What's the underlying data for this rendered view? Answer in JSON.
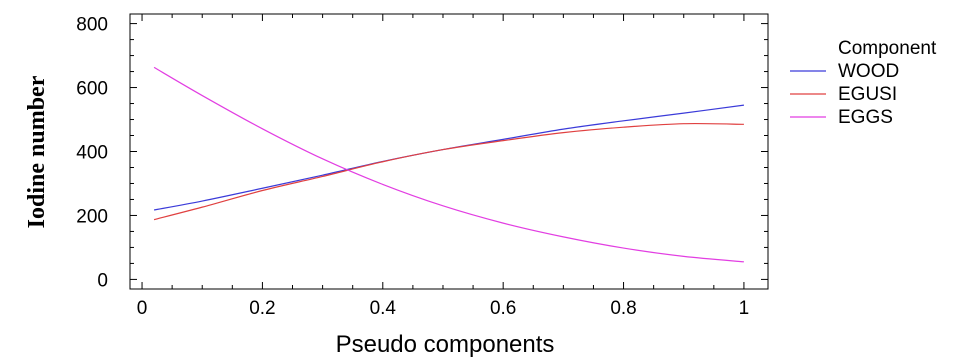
{
  "chart_data": {
    "type": "line",
    "title": "",
    "xlabel": "Pseudo components",
    "ylabel": "Iodine number",
    "xlim": [
      -0.02,
      1.04
    ],
    "ylim": [
      -30,
      830
    ],
    "xticks": [
      0,
      0.2,
      0.4,
      0.6,
      0.8,
      1
    ],
    "xtick_labels": [
      "0",
      "0.2",
      "0.4",
      "0.6",
      "0.8",
      "1"
    ],
    "yticks": [
      0,
      200,
      400,
      600,
      800
    ],
    "ytick_labels": [
      "0",
      "200",
      "400",
      "600",
      "800"
    ],
    "grid": false,
    "legend": {
      "title": "Component",
      "placement": "outside-right"
    },
    "x": [
      0.02,
      0.1,
      0.2,
      0.3,
      0.4,
      0.5,
      0.6,
      0.7,
      0.8,
      0.9,
      1.0
    ],
    "series": [
      {
        "name": "WOOD",
        "color": "#3b3bd9",
        "values": [
          217,
          245,
          285,
          326,
          369,
          406,
          438,
          470,
          496,
          520,
          545
        ]
      },
      {
        "name": "EGUSI",
        "color": "#e04040",
        "values": [
          187,
          226,
          278,
          322,
          368,
          406,
          434,
          459,
          476,
          487,
          485
        ]
      },
      {
        "name": "EGGS",
        "color": "#e23ee2",
        "values": [
          663,
          575,
          471,
          377,
          297,
          230,
          176,
          133,
          98,
          72,
          55
        ]
      }
    ]
  }
}
